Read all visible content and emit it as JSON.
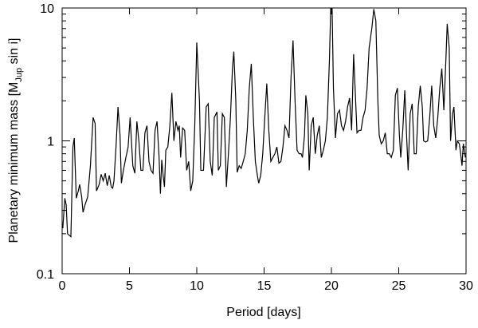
{
  "chart_data": {
    "type": "line",
    "x_label": "Period [days]",
    "y_label": [
      "Planetary minimum mass [M",
      "Jup",
      " sin i]"
    ],
    "x": [
      0.05,
      0.2,
      0.3,
      0.4,
      0.65,
      0.8,
      0.9,
      1.05,
      1.2,
      1.3,
      1.45,
      1.55,
      1.7,
      1.9,
      2.1,
      2.3,
      2.45,
      2.55,
      2.75,
      2.9,
      3.05,
      3.2,
      3.35,
      3.5,
      3.65,
      3.75,
      3.85,
      4.0,
      4.15,
      4.3,
      4.4,
      4.55,
      4.7,
      4.9,
      5.05,
      5.25,
      5.4,
      5.55,
      5.7,
      5.85,
      6.0,
      6.15,
      6.3,
      6.45,
      6.6,
      6.75,
      6.9,
      7.05,
      7.2,
      7.3,
      7.4,
      7.5,
      7.6,
      7.7,
      7.85,
      8.0,
      8.15,
      8.3,
      8.45,
      8.6,
      8.7,
      8.8,
      8.95,
      9.1,
      9.25,
      9.4,
      9.55,
      9.7,
      9.85,
      10.0,
      10.2,
      10.3,
      10.5,
      10.7,
      10.85,
      11.0,
      11.15,
      11.3,
      11.5,
      11.6,
      11.75,
      11.9,
      12.05,
      12.2,
      12.35,
      12.5,
      12.65,
      12.75,
      12.9,
      13.0,
      13.15,
      13.3,
      13.45,
      13.6,
      13.75,
      13.9,
      14.05,
      14.2,
      14.35,
      14.5,
      14.6,
      14.75,
      14.9,
      15.05,
      15.2,
      15.35,
      15.5,
      15.65,
      15.8,
      15.95,
      16.1,
      16.25,
      16.4,
      16.55,
      16.7,
      16.85,
      17.0,
      17.15,
      17.3,
      17.45,
      17.6,
      17.75,
      17.85,
      18.0,
      18.1,
      18.25,
      18.35,
      18.5,
      18.65,
      18.8,
      18.95,
      19.1,
      19.25,
      19.4,
      19.55,
      19.7,
      19.85,
      19.95,
      20.05,
      20.15,
      20.3,
      20.45,
      20.6,
      20.75,
      20.9,
      21.05,
      21.2,
      21.35,
      21.5,
      21.65,
      21.8,
      21.9,
      22.05,
      22.2,
      22.35,
      22.5,
      22.65,
      22.8,
      23.0,
      23.15,
      23.3,
      23.45,
      23.55,
      23.7,
      23.85,
      24.0,
      24.15,
      24.3,
      24.45,
      24.6,
      24.75,
      24.9,
      25.05,
      25.15,
      25.3,
      25.45,
      25.6,
      25.7,
      25.85,
      26.0,
      26.15,
      26.3,
      26.45,
      26.6,
      26.75,
      26.85,
      27.0,
      27.15,
      27.3,
      27.45,
      27.6,
      27.75,
      27.9,
      28.05,
      28.2,
      28.35,
      28.5,
      28.6,
      28.75,
      28.85,
      29.0,
      29.1,
      29.25,
      29.35,
      29.5,
      29.6,
      29.7,
      29.8,
      29.95
    ],
    "values": [
      0.22,
      0.37,
      0.33,
      0.2,
      0.19,
      0.9,
      1.05,
      0.37,
      0.42,
      0.47,
      0.38,
      0.29,
      0.33,
      0.38,
      0.65,
      1.5,
      1.35,
      0.42,
      0.47,
      0.56,
      0.5,
      0.57,
      0.46,
      0.55,
      0.45,
      0.44,
      0.5,
      0.9,
      1.8,
      1.1,
      0.48,
      0.6,
      0.72,
      0.9,
      1.5,
      0.65,
      0.57,
      1.4,
      1.0,
      0.6,
      0.6,
      1.15,
      1.3,
      0.7,
      0.6,
      0.57,
      1.2,
      1.4,
      0.75,
      0.4,
      0.72,
      0.55,
      0.45,
      0.85,
      0.9,
      1.3,
      2.3,
      1.0,
      1.4,
      1.2,
      1.3,
      0.75,
      1.25,
      1.2,
      0.6,
      0.7,
      0.42,
      0.5,
      1.3,
      5.5,
      2.0,
      0.6,
      0.6,
      1.8,
      1.9,
      0.7,
      0.55,
      1.5,
      1.65,
      0.6,
      0.65,
      1.6,
      1.5,
      0.45,
      0.8,
      1.5,
      3.5,
      4.7,
      2.0,
      0.58,
      0.65,
      0.62,
      0.7,
      0.8,
      1.2,
      2.5,
      3.8,
      1.5,
      0.7,
      0.55,
      0.48,
      0.55,
      0.8,
      1.5,
      2.7,
      1.2,
      0.7,
      0.75,
      0.8,
      0.9,
      0.68,
      0.7,
      0.9,
      1.3,
      1.2,
      1.05,
      3.0,
      5.7,
      2.0,
      0.85,
      0.8,
      0.8,
      0.75,
      1.1,
      2.2,
      1.6,
      0.6,
      1.3,
      1.5,
      0.8,
      1.1,
      1.3,
      0.75,
      0.85,
      1.0,
      1.5,
      4.0,
      10,
      10,
      2.5,
      1.05,
      1.6,
      1.7,
      1.3,
      1.2,
      1.4,
      1.8,
      2.1,
      1.2,
      4.5,
      2.0,
      1.15,
      1.2,
      1.2,
      1.5,
      1.7,
      2.5,
      5.0,
      7.0,
      9.8,
      8.0,
      2.0,
      1.1,
      0.95,
      1.0,
      1.15,
      0.8,
      0.8,
      0.75,
      0.85,
      2.2,
      2.5,
      1.1,
      0.75,
      1.2,
      2.4,
      1.0,
      0.6,
      1.6,
      1.9,
      0.8,
      0.8,
      1.8,
      2.6,
      1.8,
      1.0,
      0.98,
      1.0,
      1.5,
      2.6,
      1.3,
      1.05,
      1.5,
      2.5,
      3.5,
      1.7,
      4.0,
      7.6,
      5.0,
      1.0,
      1.6,
      1.8,
      0.85,
      1.0,
      0.95,
      0.8,
      0.65,
      0.95,
      0.75
    ],
    "color": "#000000",
    "xlim": [
      0,
      30
    ],
    "xticks": [
      0,
      5,
      10,
      15,
      20,
      25,
      30
    ],
    "ylim": [
      0.1,
      10
    ],
    "yticks": [
      0.1,
      1,
      10
    ],
    "y_minor_ticks": [
      0.2,
      0.3,
      0.4,
      0.5,
      0.6,
      0.7,
      0.8,
      0.9,
      2,
      3,
      4,
      5,
      6,
      7,
      8,
      9
    ],
    "y_log": true,
    "grid": false
  }
}
